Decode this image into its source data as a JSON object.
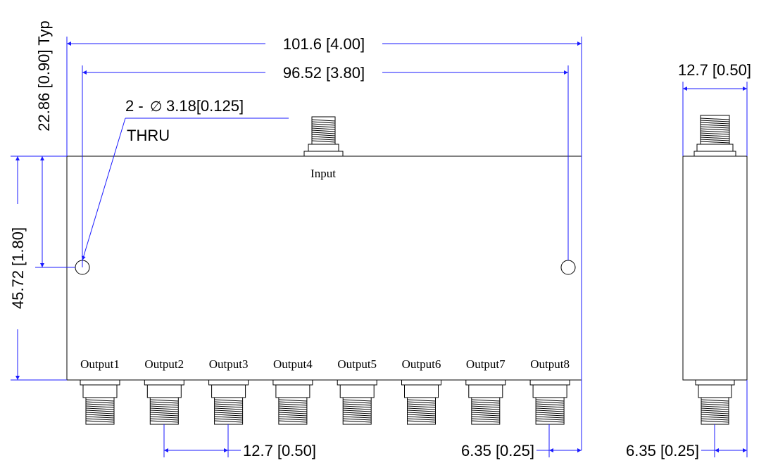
{
  "dimensions": {
    "overall_length": "101.6 [4.00]",
    "hole_spacing": "96.52 [3.80]",
    "side_width": "12.7 [0.50]",
    "body_height": "45.72 [1.80]",
    "hole_offset": "22.86 [0.90] Typ",
    "hole_callout_line1": "2 -",
    "hole_callout_symbol": "∅",
    "hole_callout_value": "3.18[0.125]",
    "hole_callout_line2": "THRU",
    "output_pitch": "12.7 [0.50]",
    "edge_offset_front": "6.35 [0.25]",
    "edge_offset_side": "6.35 [0.25]"
  },
  "ports": {
    "input_label": "Input",
    "outputs": [
      "Output1",
      "Output2",
      "Output3",
      "Output4",
      "Output5",
      "Output6",
      "Output7",
      "Output8"
    ]
  },
  "colors": {
    "dimension_lines": "#1a1aff",
    "outline": "#000000"
  }
}
